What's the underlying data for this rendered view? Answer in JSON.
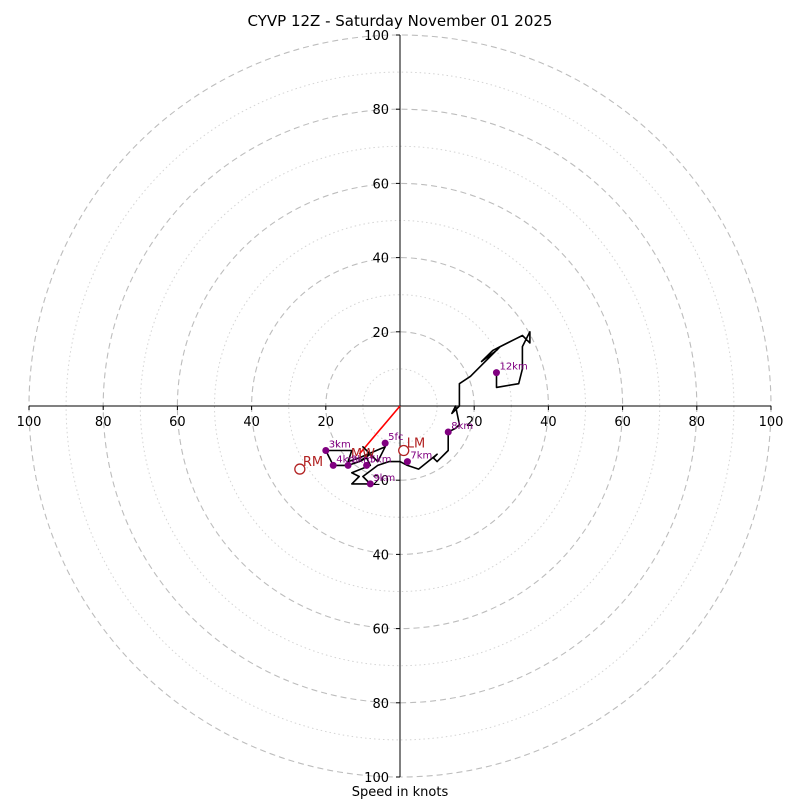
{
  "chart_data": {
    "type": "scatter",
    "subtype": "hodograph",
    "title": "CYVP 12Z - Saturday November 01 2025",
    "xlabel": "Speed in knots",
    "ylabel": "",
    "xlim": [
      -100,
      100
    ],
    "ylim": [
      -100,
      100
    ],
    "ring_major_step": 20,
    "ring_minor_step": 10,
    "x_tick_labels": [
      "100",
      "80",
      "60",
      "40",
      "20",
      "20",
      "40",
      "60",
      "80",
      "100"
    ],
    "x_tick_values": [
      -100,
      -80,
      -60,
      -40,
      -20,
      20,
      40,
      60,
      80,
      100
    ],
    "y_tick_labels": [
      "100",
      "80",
      "60",
      "40",
      "20",
      "20",
      "40",
      "60",
      "80",
      "100"
    ],
    "y_tick_values": [
      100,
      80,
      60,
      40,
      20,
      -20,
      -40,
      -60,
      -80,
      -100
    ],
    "trace": [
      [
        -11,
        -15
      ],
      [
        -8,
        -13
      ],
      [
        -10,
        -11
      ],
      [
        -6,
        -15
      ],
      [
        -4,
        -11
      ],
      [
        -11,
        -14
      ],
      [
        -14,
        -15
      ],
      [
        -13,
        -12
      ],
      [
        -20,
        -12
      ],
      [
        -18,
        -16
      ],
      [
        -14,
        -16
      ],
      [
        -11,
        -15
      ],
      [
        -9,
        -14
      ],
      [
        -8,
        -16
      ],
      [
        -13,
        -18
      ],
      [
        -11,
        -19
      ],
      [
        -13,
        -21
      ],
      [
        -8,
        -21
      ],
      [
        -10,
        -19
      ],
      [
        -6,
        -16
      ],
      [
        -3,
        -15
      ],
      [
        0,
        -15
      ],
      [
        2,
        -16
      ],
      [
        5,
        -17
      ],
      [
        10,
        -13
      ],
      [
        9,
        -14
      ],
      [
        10,
        -15
      ],
      [
        13,
        -12
      ],
      [
        13,
        -7
      ],
      [
        15,
        -6
      ],
      [
        16,
        -5
      ],
      [
        15,
        0
      ],
      [
        14,
        -2
      ],
      [
        16,
        0
      ],
      [
        16,
        6
      ],
      [
        19,
        8
      ],
      [
        20,
        9
      ],
      [
        27,
        16
      ],
      [
        25,
        15
      ],
      [
        22,
        12
      ],
      [
        26,
        15
      ],
      [
        27,
        16
      ],
      [
        31,
        18
      ],
      [
        33,
        19
      ],
      [
        35,
        17
      ],
      [
        35,
        20
      ],
      [
        34,
        18
      ],
      [
        33,
        16
      ],
      [
        33,
        14
      ],
      [
        33,
        10
      ],
      [
        32,
        6
      ],
      [
        26,
        5
      ],
      [
        26,
        9
      ]
    ],
    "height_markers": [
      {
        "label": "5fc",
        "u": -4,
        "v": -10
      },
      {
        "label": "3km",
        "u": -20,
        "v": -12
      },
      {
        "label": "4km",
        "u": -18,
        "v": -16
      },
      {
        "label": "2km",
        "u": -14,
        "v": -16
      },
      {
        "label": "5km",
        "u": -9,
        "v": -16
      },
      {
        "label": "9km",
        "u": -8,
        "v": -21
      },
      {
        "label": "7km",
        "u": 2,
        "v": -15
      },
      {
        "label": "8km",
        "u": 13,
        "v": -7
      },
      {
        "label": "12km",
        "u": 26,
        "v": 9
      }
    ],
    "storm_motion": [
      {
        "label": "RM",
        "u": -27,
        "v": -17
      },
      {
        "label": "LM",
        "u": 1,
        "v": -12
      }
    ],
    "mean_wind_label": "MW",
    "mean_wind": {
      "u": -10,
      "v": -13
    },
    "shear_vector": {
      "from": [
        0,
        0
      ],
      "to": [
        -11,
        -13
      ]
    },
    "colors": {
      "trace": "#000000",
      "height_markers": "#800080",
      "storm_motion": "#b22222",
      "shear_vector": "#ff0000",
      "rings": "#bdbdbd"
    }
  }
}
